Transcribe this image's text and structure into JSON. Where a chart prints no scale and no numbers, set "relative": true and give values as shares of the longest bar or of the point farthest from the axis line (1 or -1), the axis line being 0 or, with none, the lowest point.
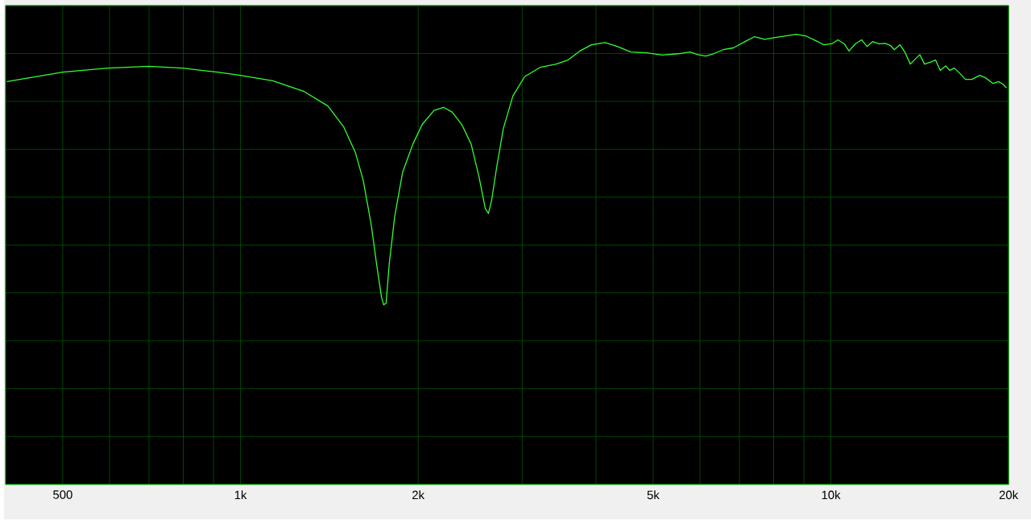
{
  "chart_data": {
    "type": "line",
    "relative": true,
    "log": "x",
    "grid": true,
    "xlim": [
      400,
      20000
    ],
    "xticks": [
      500,
      {
        "value": 600,
        "label": null
      },
      {
        "value": 700,
        "label": null
      },
      {
        "value": 800,
        "label": null
      },
      {
        "value": 900,
        "label": null
      },
      {
        "value": 1000,
        "label": "1k"
      },
      {
        "value": 2000,
        "label": "2k"
      },
      {
        "value": 3000,
        "label": null
      },
      {
        "value": 4000,
        "label": null
      },
      {
        "value": 5000,
        "label": "5k"
      },
      {
        "value": 6000,
        "label": null
      },
      {
        "value": 7000,
        "label": null
      },
      {
        "value": 8000,
        "label": null
      },
      {
        "value": 9000,
        "label": null
      },
      {
        "value": 10000,
        "label": "10k"
      },
      {
        "value": 20000,
        "label": "20k"
      }
    ],
    "series": [
      {
        "color": "#33ff33",
        "x": [
          402,
          500,
          595,
          700,
          799,
          915,
          1000,
          1134,
          1282,
          1406,
          1495,
          1565,
          1614,
          1665,
          1701,
          1733,
          1748,
          1765,
          1786,
          1825,
          1882,
          1959,
          2032,
          2128,
          2208,
          2284,
          2370,
          2459,
          2535,
          2598,
          2630,
          2663,
          2721,
          2788,
          2893,
          3029,
          3221,
          3425,
          3587,
          3756,
          3933,
          4143,
          4353,
          4585,
          4875,
          5184,
          5512,
          5772,
          5954,
          6138,
          6329,
          6567,
          6834,
          7157,
          7425,
          7727,
          8042,
          8344,
          8737,
          9093,
          9434,
          9727,
          10031,
          10280,
          10536,
          10732,
          11000,
          11272,
          11517,
          11766,
          12058,
          12359,
          12627,
          12804,
          13097,
          13341,
          13632,
          13842,
          14145,
          14408,
          14723,
          15041,
          15321,
          15656,
          15898,
          16193,
          16545,
          16904,
          17327,
          17865,
          18252,
          18823,
          19231,
          19588,
          19830
        ],
        "values": [
          0.895,
          0.916,
          0.925,
          0.929,
          0.925,
          0.916,
          0.909,
          0.897,
          0.873,
          0.841,
          0.795,
          0.738,
          0.676,
          0.578,
          0.488,
          0.417,
          0.399,
          0.403,
          0.488,
          0.595,
          0.693,
          0.756,
          0.8,
          0.831,
          0.838,
          0.827,
          0.8,
          0.756,
          0.684,
          0.613,
          0.602,
          0.631,
          0.711,
          0.791,
          0.863,
          0.906,
          0.927,
          0.934,
          0.943,
          0.963,
          0.977,
          0.982,
          0.973,
          0.961,
          0.959,
          0.954,
          0.957,
          0.961,
          0.955,
          0.952,
          0.957,
          0.966,
          0.97,
          0.984,
          0.995,
          0.989,
          0.993,
          0.996,
          1.0,
          0.996,
          0.986,
          0.977,
          0.979,
          0.988,
          0.979,
          0.963,
          0.979,
          0.988,
          0.973,
          0.984,
          0.979,
          0.98,
          0.975,
          0.966,
          0.977,
          0.961,
          0.934,
          0.943,
          0.955,
          0.934,
          0.938,
          0.943,
          0.92,
          0.93,
          0.92,
          0.925,
          0.913,
          0.9,
          0.9,
          0.909,
          0.904,
          0.891,
          0.895,
          0.889,
          0.881
        ]
      }
    ]
  }
}
